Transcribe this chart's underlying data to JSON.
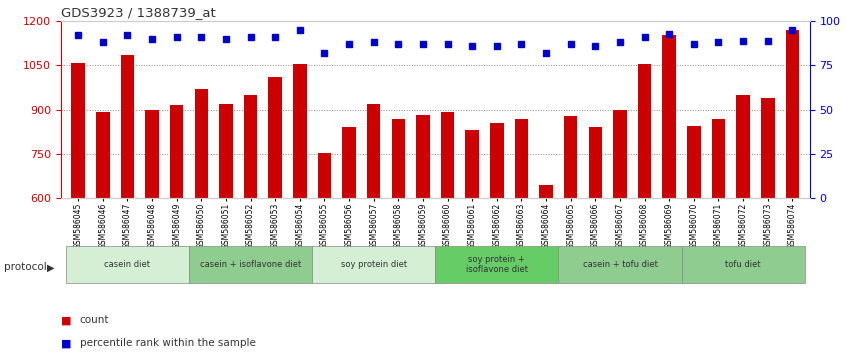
{
  "title": "GDS3923 / 1388739_at",
  "samples": [
    "GSM586045",
    "GSM586046",
    "GSM586047",
    "GSM586048",
    "GSM586049",
    "GSM586050",
    "GSM586051",
    "GSM586052",
    "GSM586053",
    "GSM586054",
    "GSM586055",
    "GSM586056",
    "GSM586057",
    "GSM586058",
    "GSM586059",
    "GSM586060",
    "GSM586061",
    "GSM586062",
    "GSM586063",
    "GSM586064",
    "GSM586065",
    "GSM586066",
    "GSM586067",
    "GSM586068",
    "GSM586069",
    "GSM586070",
    "GSM586071",
    "GSM586072",
    "GSM586073",
    "GSM586074"
  ],
  "counts": [
    1060,
    893,
    1085,
    900,
    915,
    970,
    920,
    950,
    1010,
    1055,
    755,
    840,
    920,
    870,
    883,
    893,
    833,
    855,
    870,
    645,
    878,
    843,
    900,
    1055,
    1155,
    845,
    870,
    950,
    940,
    1170
  ],
  "percentiles": [
    92,
    88,
    92,
    90,
    91,
    91,
    90,
    91,
    91,
    95,
    82,
    87,
    88,
    87,
    87,
    87,
    86,
    86,
    87,
    82,
    87,
    86,
    88,
    91,
    93,
    87,
    88,
    89,
    89,
    95
  ],
  "ylim_left": [
    600,
    1200
  ],
  "ylim_right": [
    0,
    100
  ],
  "yticks_left": [
    600,
    750,
    900,
    1050,
    1200
  ],
  "yticks_right": [
    0,
    25,
    50,
    75,
    100
  ],
  "bar_color": "#cc0000",
  "dot_color": "#0000cc",
  "grid_color": "#888888",
  "protocols": [
    {
      "label": "casein diet",
      "start": 0,
      "end": 5,
      "color": "#d5efd5"
    },
    {
      "label": "casein + isoflavone diet",
      "start": 5,
      "end": 10,
      "color": "#8fcc8f"
    },
    {
      "label": "soy protein diet",
      "start": 10,
      "end": 15,
      "color": "#d5efd5"
    },
    {
      "label": "soy protein +\nisoflavone diet",
      "start": 15,
      "end": 20,
      "color": "#66cc66"
    },
    {
      "label": "casein + tofu diet",
      "start": 20,
      "end": 25,
      "color": "#8fcc8f"
    },
    {
      "label": "tofu diet",
      "start": 25,
      "end": 30,
      "color": "#8fcc8f"
    }
  ],
  "protocol_label": "protocol",
  "legend_count_label": "count",
  "legend_pct_label": "percentile rank within the sample",
  "background_color": "#ffffff",
  "bar_width": 0.55
}
